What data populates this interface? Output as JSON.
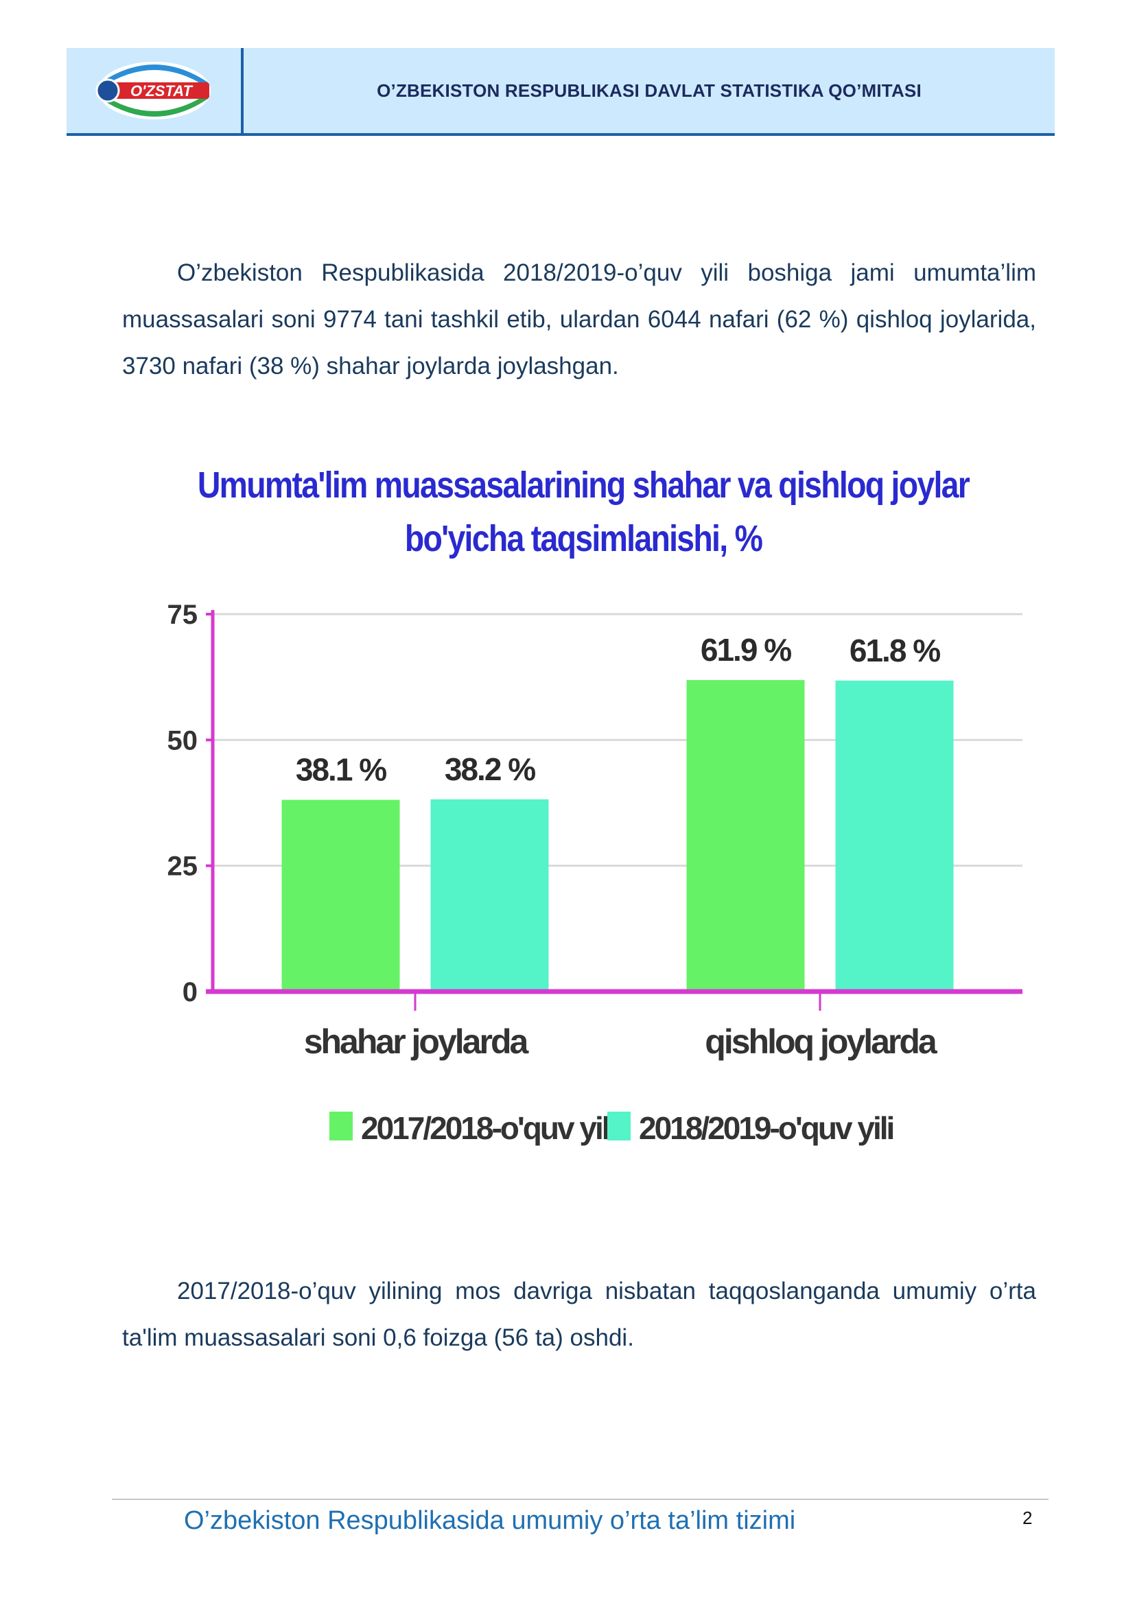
{
  "header": {
    "logo_text": "O'ZSTAT",
    "title": "O’ZBEKISTON RESPUBLIKASI DAVLAT STATISTIKA QO’MITASI"
  },
  "paragraphs": {
    "p1": "O’zbekiston Respublikasida 2018/2019-o’quv yili boshiga jami umumta’lim muassasalari soni 9774 tani tashkil etib, ulardan 6044 nafari (62 %) qishloq joylarida, 3730 nafari (38 %) shahar joylarda joylashgan.",
    "p2": "2017/2018-o’quv yilining mos davriga nisbatan taqqoslanganda umumiy o’rta ta'lim muassasalari soni 0,6 foizga (56 ta) oshdi."
  },
  "chart_data": {
    "type": "bar",
    "title": "Umumta'lim muassasalarining shahar va qishloq joylar bo'yicha taqsimlanishi, %",
    "categories": [
      "shahar joylarda",
      "qishloq joylarda"
    ],
    "series": [
      {
        "name": "2017/2018-o'quv yili",
        "values": [
          38.1,
          61.9
        ],
        "labels": [
          "38.1 %",
          "61.9 %"
        ],
        "color": "#66f266"
      },
      {
        "name": "2018/2019-o'quv yili",
        "values": [
          38.2,
          61.8
        ],
        "labels": [
          "38.2 %",
          "61.8 %"
        ],
        "color": "#55f3c8"
      }
    ],
    "yticks": [
      "0",
      "25",
      "50",
      "75"
    ],
    "ylim": [
      0,
      75
    ],
    "grid": true,
    "legend": "bottom",
    "axis_color": "#d53ad0"
  },
  "footer": {
    "text": "O’zbekiston Respublikasida umumiy o’rta ta’lim tizimi",
    "page": "2"
  }
}
